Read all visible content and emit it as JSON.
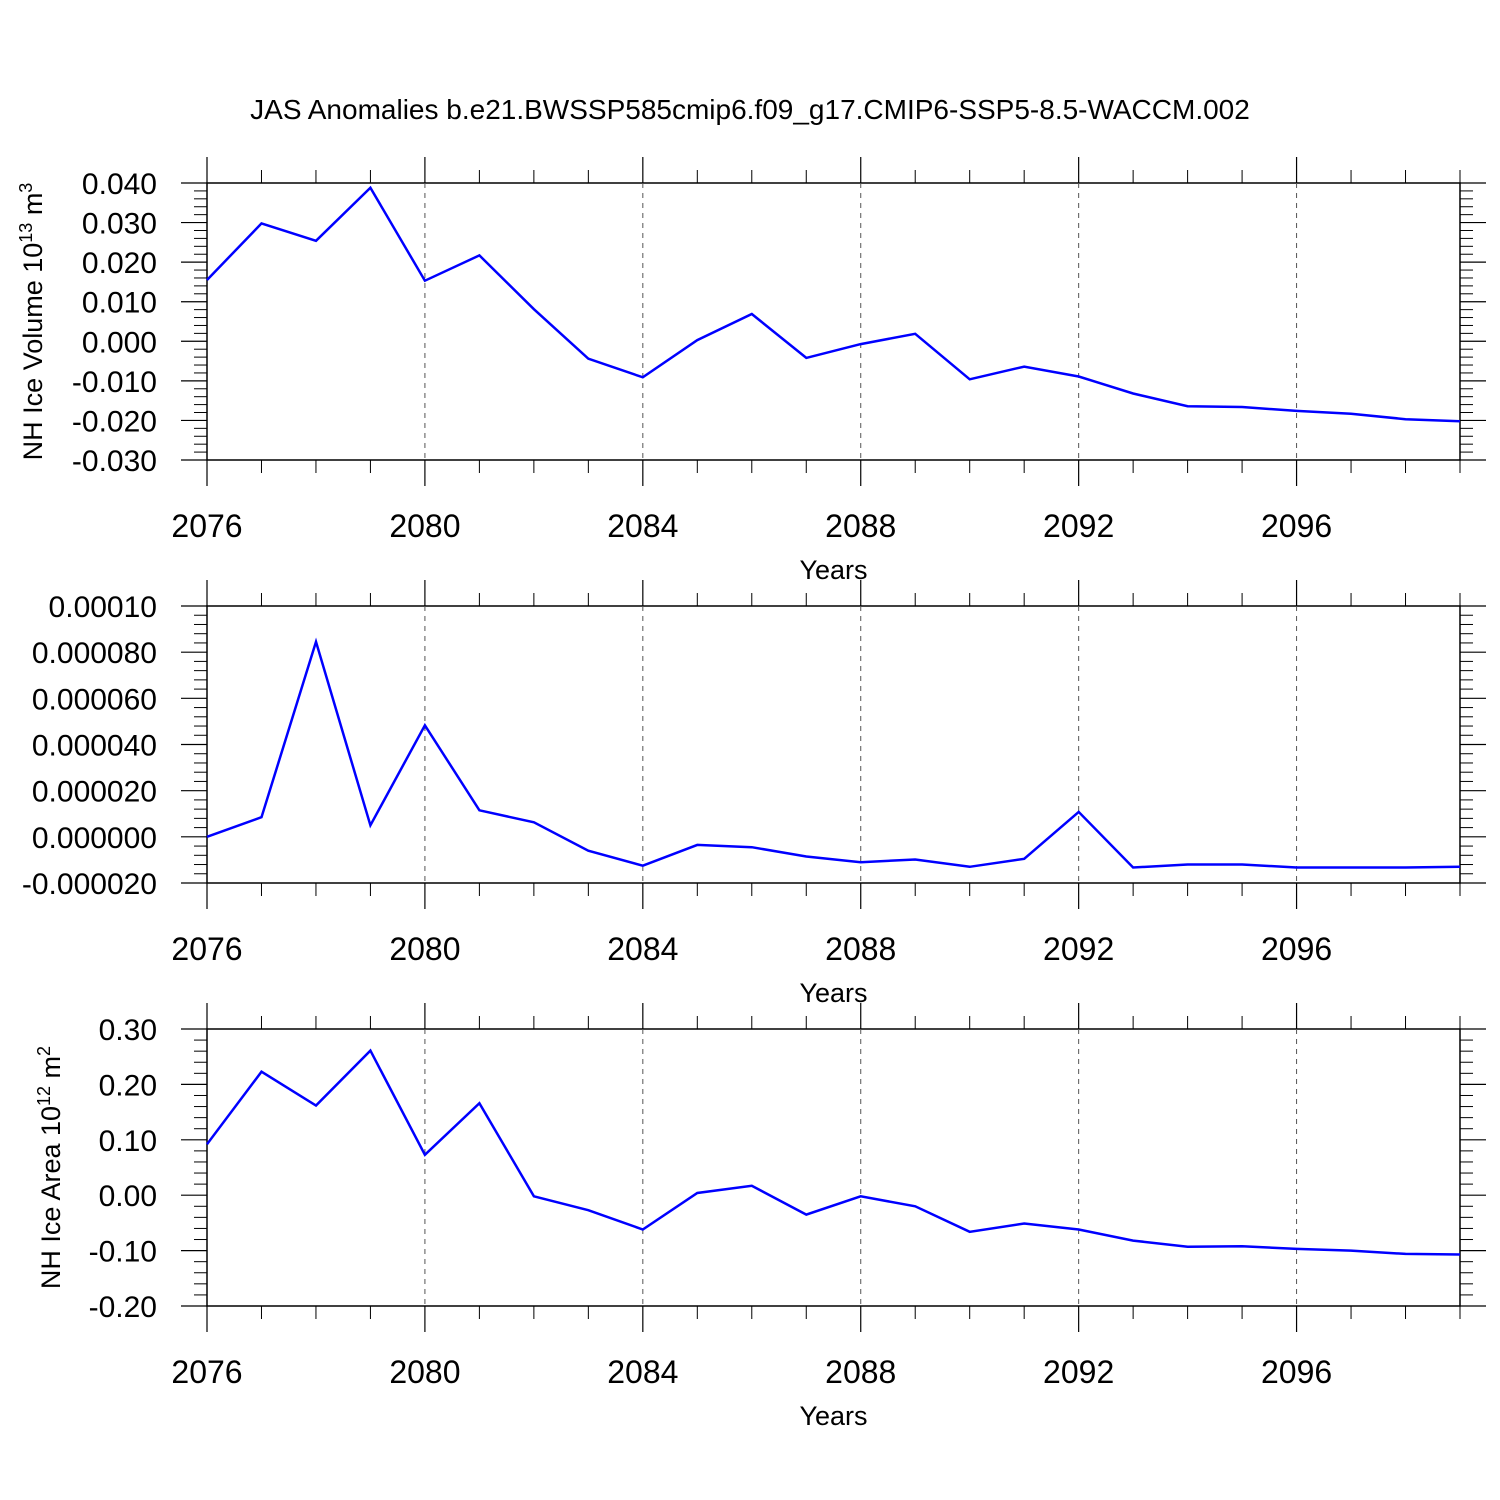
{
  "page_title": "JAS Anomalies b.e21.BWSSP585cmip6.f09_g17.CMIP6-SSP5-8.5-WACCM.002",
  "chart_data": [
    {
      "type": "line",
      "xlabel": "Years",
      "ylabel": "NH Ice Volume 10",
      "ylabel_exponent": "13",
      "ylabel_unit": "m",
      "ylabel_unit_exponent": "3",
      "xlim": [
        2076,
        2099
      ],
      "ylim": [
        -0.03,
        0.04
      ],
      "x_ticks": [
        "2076",
        "2080",
        "2084",
        "2088",
        "2092",
        "2096"
      ],
      "y_ticks": [
        "0.040",
        "0.030",
        "0.020",
        "0.010",
        "0.000",
        "-0.010",
        "-0.020",
        "-0.030"
      ],
      "color": "#0000ff",
      "grid": "vertical dashed at major x ticks",
      "x": [
        2076,
        2077,
        2078,
        2079,
        2080,
        2081,
        2082,
        2083,
        2084,
        2085,
        2086,
        2087,
        2088,
        2089,
        2090,
        2091,
        2092,
        2093,
        2094,
        2095,
        2096,
        2097,
        2098,
        2099
      ],
      "values": [
        0.0155,
        0.0298,
        0.0254,
        0.0388,
        0.0153,
        0.0217,
        0.0081,
        -0.0044,
        -0.0091,
        0.0003,
        0.0069,
        -0.0042,
        -0.0007,
        0.0019,
        -0.0096,
        -0.0064,
        -0.0089,
        -0.0132,
        -0.0164,
        -0.0166,
        -0.0176,
        -0.0183,
        -0.0197,
        -0.0202
      ]
    },
    {
      "type": "line",
      "xlabel": "Years",
      "ylabel": "",
      "xlim": [
        2076,
        2099
      ],
      "ylim": [
        -2e-05,
        0.0001
      ],
      "x_ticks": [
        "2076",
        "2080",
        "2084",
        "2088",
        "2092",
        "2096"
      ],
      "y_ticks": [
        "0.00010",
        "0.000080",
        "0.000060",
        "0.000040",
        "0.000020",
        "0.000000",
        "-0.000020"
      ],
      "color": "#0000ff",
      "grid": "vertical dashed at major x ticks",
      "x": [
        2076,
        2077,
        2078,
        2079,
        2080,
        2081,
        2082,
        2083,
        2084,
        2085,
        2086,
        2087,
        2088,
        2089,
        2090,
        2091,
        2092,
        2093,
        2094,
        2095,
        2096,
        2097,
        2098,
        2099
      ],
      "values": [
        0.0,
        8.5e-06,
        8.45e-05,
        5e-06,
        4.83e-05,
        1.15e-05,
        6.3e-06,
        -6e-06,
        -1.25e-05,
        -3.5e-06,
        -4.5e-06,
        -8.5e-06,
        -1.1e-05,
        -9.8e-06,
        -1.3e-05,
        -9.5e-06,
        1.08e-05,
        -1.33e-05,
        -1.2e-05,
        -1.2e-05,
        -1.33e-05,
        -1.33e-05,
        -1.33e-05,
        -1.3e-05
      ]
    },
    {
      "type": "line",
      "xlabel": "Years",
      "ylabel": "NH Ice Area 10",
      "ylabel_exponent": "12",
      "ylabel_unit": "m",
      "ylabel_unit_exponent": "2",
      "xlim": [
        2076,
        2099
      ],
      "ylim": [
        -0.2,
        0.3
      ],
      "x_ticks": [
        "2076",
        "2080",
        "2084",
        "2088",
        "2092",
        "2096"
      ],
      "y_ticks": [
        "0.30",
        "0.20",
        "0.10",
        "0.00",
        "-0.10",
        "-0.20"
      ],
      "color": "#0000ff",
      "grid": "vertical dashed at major x ticks",
      "x": [
        2076,
        2077,
        2078,
        2079,
        2080,
        2081,
        2082,
        2083,
        2084,
        2085,
        2086,
        2087,
        2088,
        2089,
        2090,
        2091,
        2092,
        2093,
        2094,
        2095,
        2096,
        2097,
        2098,
        2099
      ],
      "values": [
        0.092,
        0.223,
        0.162,
        0.261,
        0.073,
        0.166,
        -0.002,
        -0.027,
        -0.062,
        0.004,
        0.017,
        -0.035,
        -0.002,
        -0.02,
        -0.066,
        -0.051,
        -0.062,
        -0.082,
        -0.093,
        -0.092,
        -0.097,
        -0.1,
        -0.106,
        -0.107
      ]
    }
  ]
}
